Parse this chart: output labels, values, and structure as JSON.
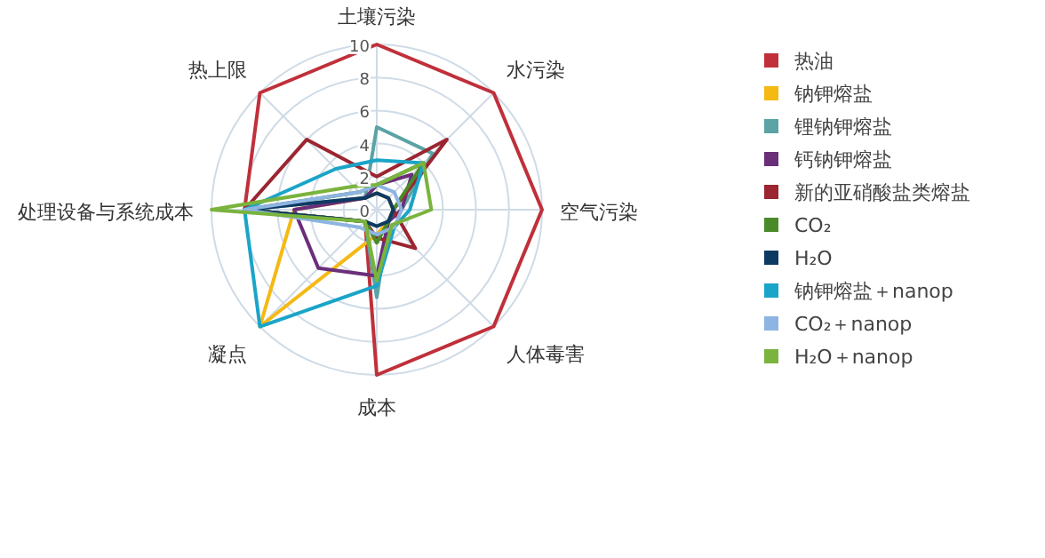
{
  "chart_data": {
    "type": "radar",
    "categories": [
      "土壤污染",
      "水污染",
      "空气污染",
      "人体毒害",
      "成本",
      "凝点",
      "处理设备与系统成本",
      "热上限"
    ],
    "ylim": [
      0,
      10
    ],
    "yticks": [
      0,
      2,
      4,
      6,
      8,
      10
    ],
    "grid": true,
    "legend": "right",
    "series": [
      {
        "name": "热油",
        "color": "#c0303a",
        "values": [
          10,
          10,
          10,
          10,
          10,
          1,
          8,
          10
        ]
      },
      {
        "name": "钠钾熔盐",
        "color": "#f5b914",
        "values": [
          1,
          1,
          1,
          1,
          1.5,
          10,
          5,
          1
        ]
      },
      {
        "name": "锂钠钾熔盐",
        "color": "#5ba3a5",
        "values": [
          5,
          4.8,
          1.5,
          1,
          5.3,
          1,
          8,
          1
        ]
      },
      {
        "name": "钙钠钾熔盐",
        "color": "#6b2f7a",
        "values": [
          1.5,
          3,
          1.5,
          1,
          4,
          5,
          5,
          1
        ]
      },
      {
        "name": "新的亚硝酸盐类熔盐",
        "color": "#9b2530",
        "values": [
          2,
          6,
          1,
          3.3,
          1.7,
          1,
          8,
          6
        ]
      },
      {
        "name": "CO₂",
        "color": "#4a8a2a",
        "values": [
          1.5,
          4,
          1,
          1,
          2,
          1,
          8,
          1.5
        ]
      },
      {
        "name": "H₂O",
        "color": "#0d3a63",
        "values": [
          1,
          1,
          1,
          1,
          1,
          1,
          8,
          1
        ]
      },
      {
        "name": "钠钾熔盐＋nanop",
        "color": "#1aa4c8",
        "values": [
          3,
          4,
          2,
          1.5,
          4.6,
          10,
          8,
          3.5
        ]
      },
      {
        "name": "CO₂＋nanop",
        "color": "#8db4e2",
        "values": [
          1.5,
          1.5,
          1.5,
          1.5,
          1.5,
          1.5,
          8,
          1.5
        ]
      },
      {
        "name": "H₂O＋nanop",
        "color": "#7ab33d",
        "values": [
          1.5,
          4,
          3.3,
          1.3,
          4.3,
          1,
          10,
          2
        ]
      }
    ]
  }
}
